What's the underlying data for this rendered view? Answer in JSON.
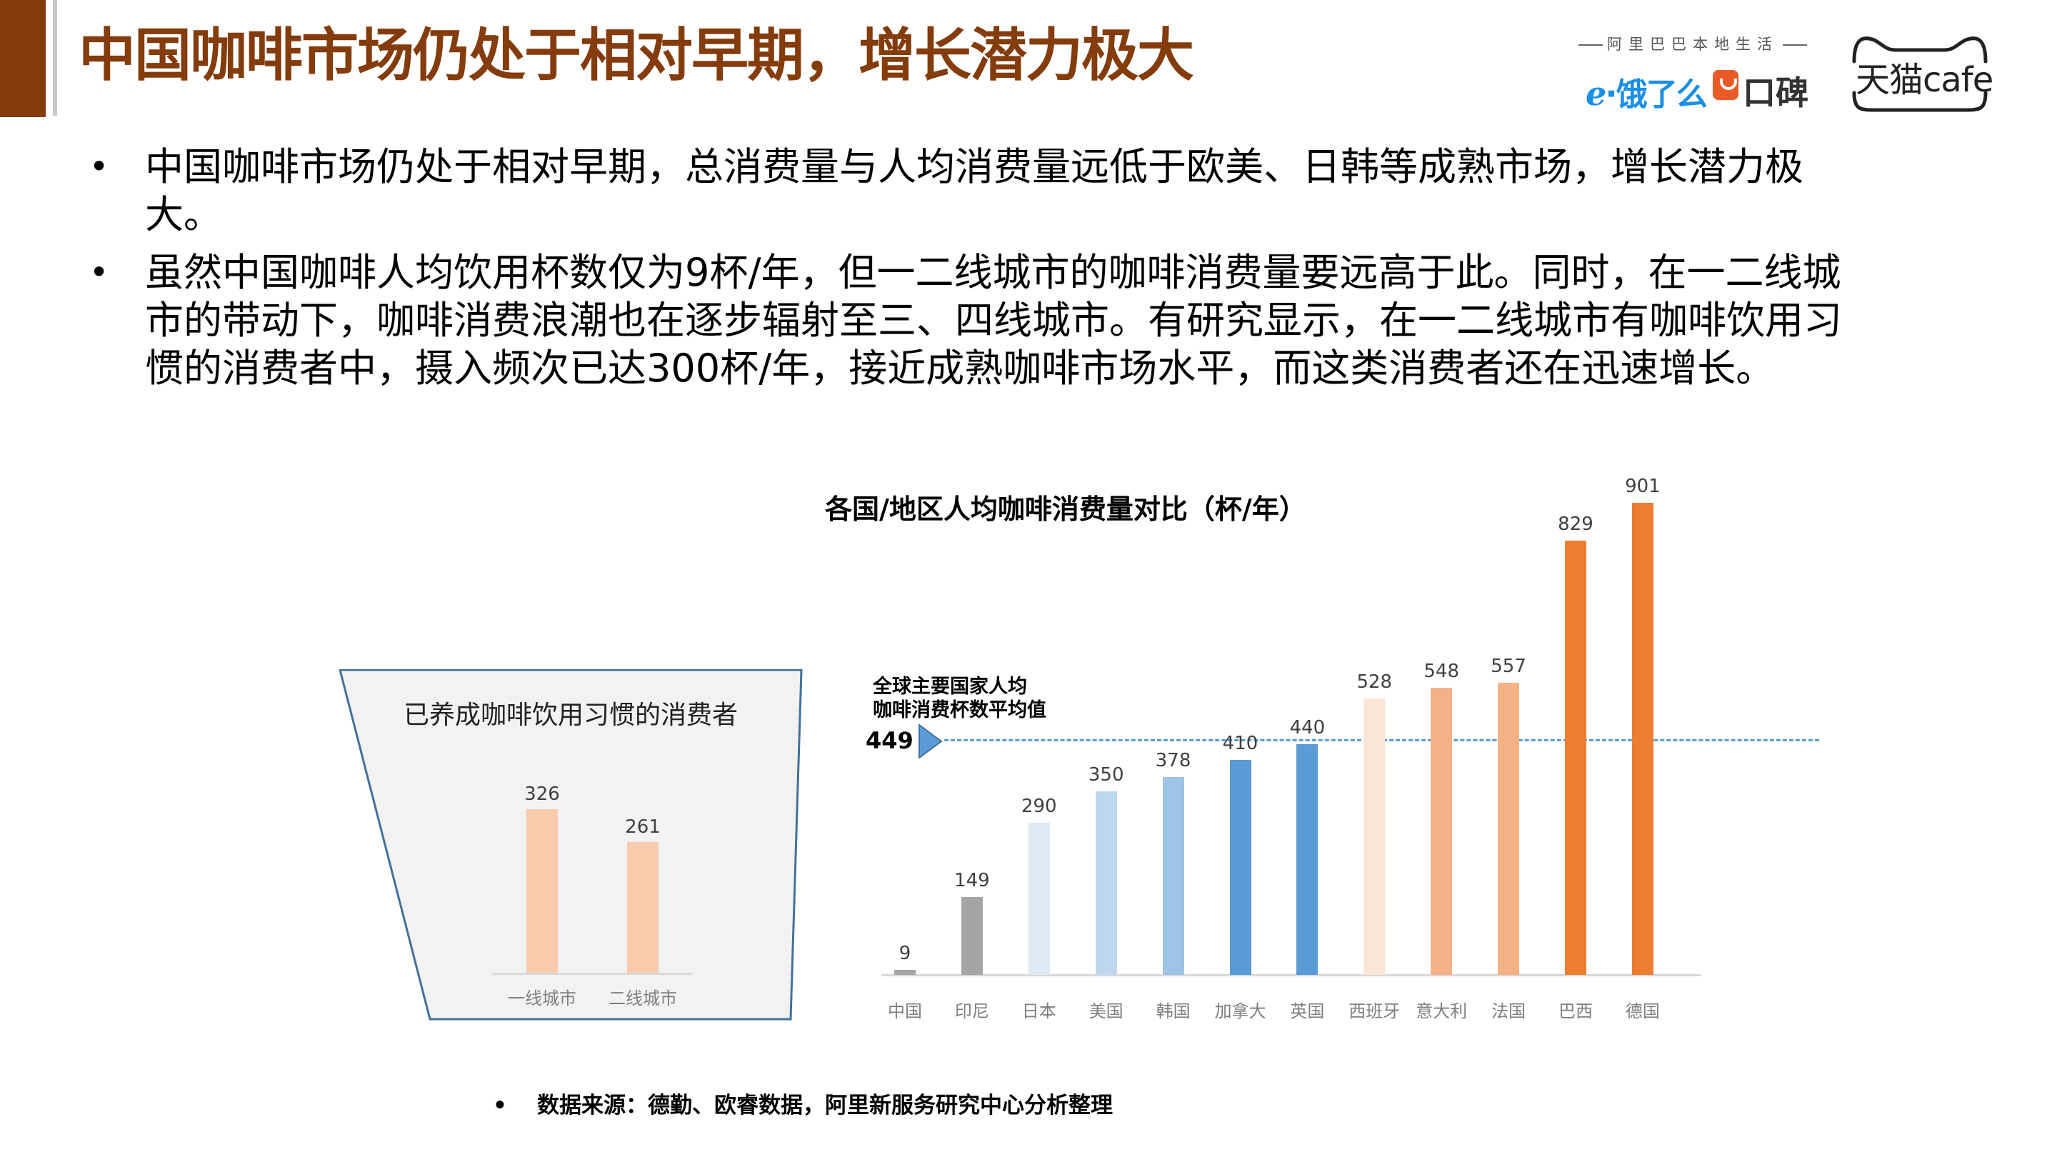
{
  "header": {
    "title": "中国咖啡市场仍处于相对早期，增长潜力极大",
    "title_color": "#843C0C",
    "logos": {
      "alibaba_tagline": "阿里巴巴本地生活",
      "eleme": "饿了么",
      "koubei": "口碑",
      "tmall_cafe": "天猫cafe"
    }
  },
  "bullets": [
    "中国咖啡市场仍处于相对早期，总消费量与人均消费量远低于欧美、日韩等成熟市场，增长潜力极大。",
    "虽然中国咖啡人均饮用杯数仅为9杯/年，但一二线城市的咖啡消费量要远高于此。同时，在一二线城市的带动下，咖啡消费浪潮也在逐步辐射至三、四线城市。有研究显示，在一二线城市有咖啡饮用习惯的消费者中，摄入频次已达300杯/年，接近成熟咖啡市场水平，而这类消费者还在迅速增长。"
  ],
  "footer": {
    "source": "数据来源：德勤、欧睿数据，阿里新服务研究中心分析整理"
  },
  "chart_data": [
    {
      "type": "bar",
      "title": "已养成咖啡饮用习惯的消费者",
      "categories": [
        "一线城市",
        "二线城市"
      ],
      "values": [
        326,
        261
      ],
      "labels": [
        "326",
        "261"
      ],
      "colors": [
        "#F8CBAD",
        "#F8CBAD"
      ],
      "xlabel": "",
      "ylabel": "",
      "grid": false
    },
    {
      "type": "bar",
      "title": "各国/地区人均咖啡消费量对比（杯/年）",
      "categories": [
        "中国",
        "印尼",
        "日本",
        "美国",
        "韩国",
        "加拿大",
        "英国",
        "西班牙",
        "意大利",
        "法国",
        "巴西",
        "德国"
      ],
      "values": [
        9,
        149,
        290,
        350,
        378,
        410,
        440,
        528,
        548,
        557,
        829,
        901
      ],
      "labels": [
        "9",
        "149",
        "290",
        "350",
        "378",
        "410",
        "440",
        "528",
        "548",
        "557",
        "829",
        "901"
      ],
      "colors": [
        "#A5A5A5",
        "#A5A5A5",
        "#DDEBF7",
        "#BDD7EE",
        "#9DC3E6",
        "#5B9BD5",
        "#5B9BD5",
        "#FBE5D6",
        "#F4B183",
        "#F4B183",
        "#ED7D31",
        "#ED7D31"
      ],
      "reference_line": {
        "value": 449,
        "label": "449",
        "annotation_line1": "全球主要国家人均",
        "annotation_line2": "咖啡消费杯数平均值",
        "color": "#5B9BD5",
        "style": "dashed"
      },
      "xlabel": "",
      "ylabel": "",
      "ylim": [
        0,
        950
      ],
      "grid": false
    }
  ]
}
